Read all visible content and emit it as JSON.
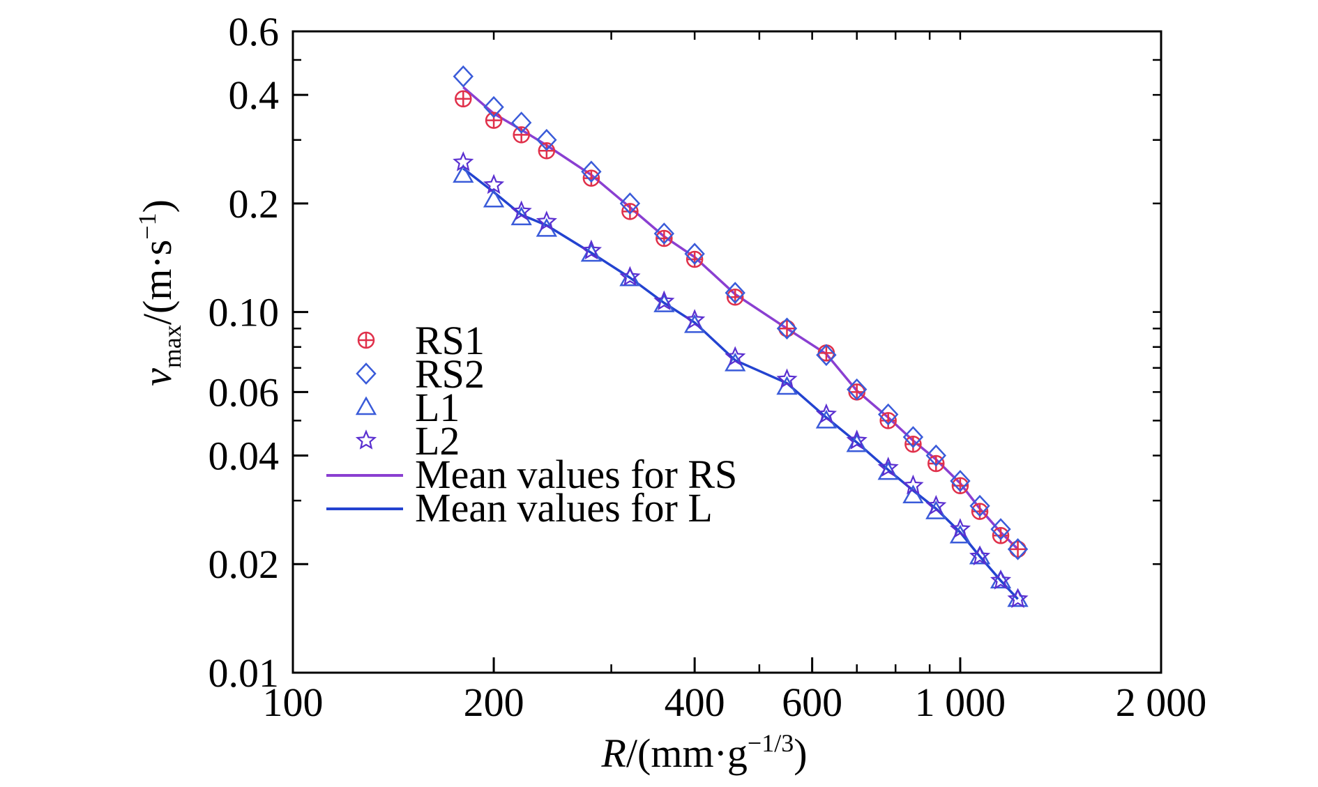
{
  "chart_data": {
    "type": "scatter",
    "title": "",
    "xlabel": {
      "main": "R",
      "unit_open": "/(mm·g",
      "unit_exp": "−1/3",
      "unit_close": ")"
    },
    "ylabel": {
      "main": "v",
      "sub": "max",
      "unit_open": "/(m·s",
      "unit_exp": "−1",
      "unit_close": ")"
    },
    "x_scale": "log",
    "y_scale": "log",
    "xlim": [
      100,
      2000
    ],
    "ylim": [
      0.01,
      0.6
    ],
    "x_ticks": [
      {
        "value": 100,
        "label": "100"
      },
      {
        "value": 200,
        "label": "200"
      },
      {
        "value": 400,
        "label": "400"
      },
      {
        "value": 600,
        "label": "600"
      },
      {
        "value": 1000,
        "label": "1 000"
      },
      {
        "value": 2000,
        "label": "2 000"
      }
    ],
    "y_ticks": [
      {
        "value": 0.01,
        "label": "0.01"
      },
      {
        "value": 0.02,
        "label": "0.02"
      },
      {
        "value": 0.04,
        "label": "0.04"
      },
      {
        "value": 0.06,
        "label": "0.06"
      },
      {
        "value": 0.1,
        "label": "0.10"
      },
      {
        "value": 0.2,
        "label": "0.2"
      },
      {
        "value": 0.4,
        "label": "0.4"
      },
      {
        "value": 0.6,
        "label": "0.6"
      }
    ],
    "grid": false,
    "legend_position": "bottom-left",
    "series": [
      {
        "name": "RS1",
        "kind": "marker",
        "marker": "circle-plus",
        "color": "#e0304a",
        "x": [
          180,
          200,
          220,
          240,
          280,
          320,
          360,
          400,
          460,
          550,
          630,
          700,
          780,
          850,
          920,
          1000,
          1070,
          1150,
          1220
        ],
        "y": [
          0.39,
          0.34,
          0.31,
          0.28,
          0.235,
          0.19,
          0.16,
          0.14,
          0.11,
          0.09,
          0.077,
          0.06,
          0.05,
          0.043,
          0.038,
          0.033,
          0.028,
          0.024,
          0.022
        ]
      },
      {
        "name": "RS2",
        "kind": "marker",
        "marker": "diamond",
        "color": "#3a5bd9",
        "x": [
          180,
          200,
          220,
          240,
          280,
          320,
          360,
          400,
          460,
          550,
          630,
          700,
          780,
          850,
          920,
          1000,
          1070,
          1150,
          1220
        ],
        "y": [
          0.45,
          0.37,
          0.335,
          0.3,
          0.245,
          0.2,
          0.165,
          0.145,
          0.113,
          0.09,
          0.076,
          0.061,
          0.052,
          0.045,
          0.04,
          0.034,
          0.029,
          0.025,
          0.022
        ]
      },
      {
        "name": "L1",
        "kind": "marker",
        "marker": "triangle",
        "color": "#3a5bd9",
        "x": [
          180,
          200,
          220,
          240,
          280,
          320,
          360,
          400,
          460,
          550,
          630,
          700,
          780,
          850,
          920,
          1000,
          1070,
          1150,
          1220
        ],
        "y": [
          0.24,
          0.205,
          0.183,
          0.17,
          0.145,
          0.124,
          0.105,
          0.092,
          0.072,
          0.062,
          0.05,
          0.043,
          0.036,
          0.031,
          0.028,
          0.024,
          0.021,
          0.018,
          0.016
        ]
      },
      {
        "name": "L2",
        "kind": "marker",
        "marker": "star",
        "color": "#5a2fd0",
        "x": [
          180,
          200,
          220,
          240,
          280,
          320,
          360,
          400,
          460,
          550,
          630,
          700,
          780,
          850,
          920,
          1000,
          1070,
          1150,
          1220
        ],
        "y": [
          0.26,
          0.225,
          0.19,
          0.178,
          0.148,
          0.125,
          0.107,
          0.095,
          0.075,
          0.065,
          0.052,
          0.044,
          0.037,
          0.033,
          0.029,
          0.025,
          0.021,
          0.018,
          0.016
        ]
      },
      {
        "name": "Mean values for RS",
        "kind": "line",
        "color": "#8a3fd1",
        "x": [
          180,
          200,
          220,
          240,
          280,
          320,
          360,
          400,
          460,
          550,
          630,
          700,
          780,
          850,
          920,
          1000,
          1070,
          1150,
          1220
        ],
        "y": [
          0.42,
          0.355,
          0.32,
          0.29,
          0.24,
          0.195,
          0.162,
          0.142,
          0.112,
          0.09,
          0.0765,
          0.0605,
          0.051,
          0.044,
          0.039,
          0.0335,
          0.0285,
          0.0245,
          0.022
        ]
      },
      {
        "name": "Mean values for L",
        "kind": "line",
        "color": "#2343d0",
        "x": [
          180,
          200,
          220,
          240,
          280,
          320,
          360,
          400,
          460,
          550,
          630,
          700,
          780,
          850,
          920,
          1000,
          1070,
          1150,
          1220
        ],
        "y": [
          0.25,
          0.215,
          0.186,
          0.174,
          0.146,
          0.1245,
          0.106,
          0.0935,
          0.0735,
          0.0635,
          0.051,
          0.0435,
          0.0365,
          0.032,
          0.0285,
          0.0245,
          0.021,
          0.018,
          0.016
        ]
      }
    ]
  }
}
